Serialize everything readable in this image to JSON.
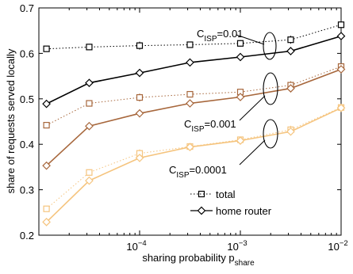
{
  "chart_data": {
    "type": "line",
    "xlabel": "sharing probability p",
    "xlabel_sub": "share",
    "ylabel": "share of requests served locally",
    "xscale": "log",
    "xlim": [
      1e-05,
      0.01
    ],
    "ylim": [
      0.2,
      0.7
    ],
    "grid": false,
    "x": [
      1.19e-05,
      3.16e-05,
      0.0001,
      0.000316,
      0.001,
      0.00316,
      0.01
    ],
    "xticks": [
      {
        "value": 0.0001,
        "base": "10",
        "exp": "−4"
      },
      {
        "value": 0.001,
        "base": "10",
        "exp": "−3"
      },
      {
        "value": 0.01,
        "base": "10",
        "exp": "−2"
      }
    ],
    "yticks": [
      {
        "value": 0.2,
        "label": "0.2"
      },
      {
        "value": 0.3,
        "label": "0.3"
      },
      {
        "value": 0.4,
        "label": "0.4"
      },
      {
        "value": 0.5,
        "label": "0.5"
      },
      {
        "value": 0.6,
        "label": "0.6"
      },
      {
        "value": 0.7,
        "label": "0.7"
      }
    ],
    "groups": [
      {
        "color": "#000000",
        "total": [
          0.61,
          0.614,
          0.617,
          0.619,
          0.622,
          0.63,
          0.663
        ],
        "home_router": [
          0.489,
          0.535,
          0.557,
          0.58,
          0.592,
          0.605,
          0.638
        ],
        "annotation": {
          "prefix": "C",
          "sub": "ISP",
          "suffix": "=0.01"
        }
      },
      {
        "color": "#a7673c",
        "total": [
          0.442,
          0.49,
          0.503,
          0.51,
          0.515,
          0.53,
          0.571
        ],
        "home_router": [
          0.353,
          0.44,
          0.468,
          0.49,
          0.504,
          0.523,
          0.565
        ],
        "annotation": {
          "prefix": "C",
          "sub": "ISP",
          "suffix": "=0.001"
        }
      },
      {
        "color": "#f5c47e",
        "total": [
          0.258,
          0.338,
          0.38,
          0.395,
          0.41,
          0.432,
          0.481
        ],
        "home_router": [
          0.229,
          0.32,
          0.37,
          0.394,
          0.408,
          0.428,
          0.48
        ],
        "annotation": {
          "prefix": "C",
          "sub": "ISP",
          "suffix": "=0.0001"
        }
      }
    ],
    "legend": {
      "placement": "bottom-right",
      "entries": [
        {
          "label": "total",
          "marker": "square",
          "line": "dotted"
        },
        {
          "label": "home router",
          "marker": "diamond",
          "line": "solid"
        }
      ]
    }
  }
}
